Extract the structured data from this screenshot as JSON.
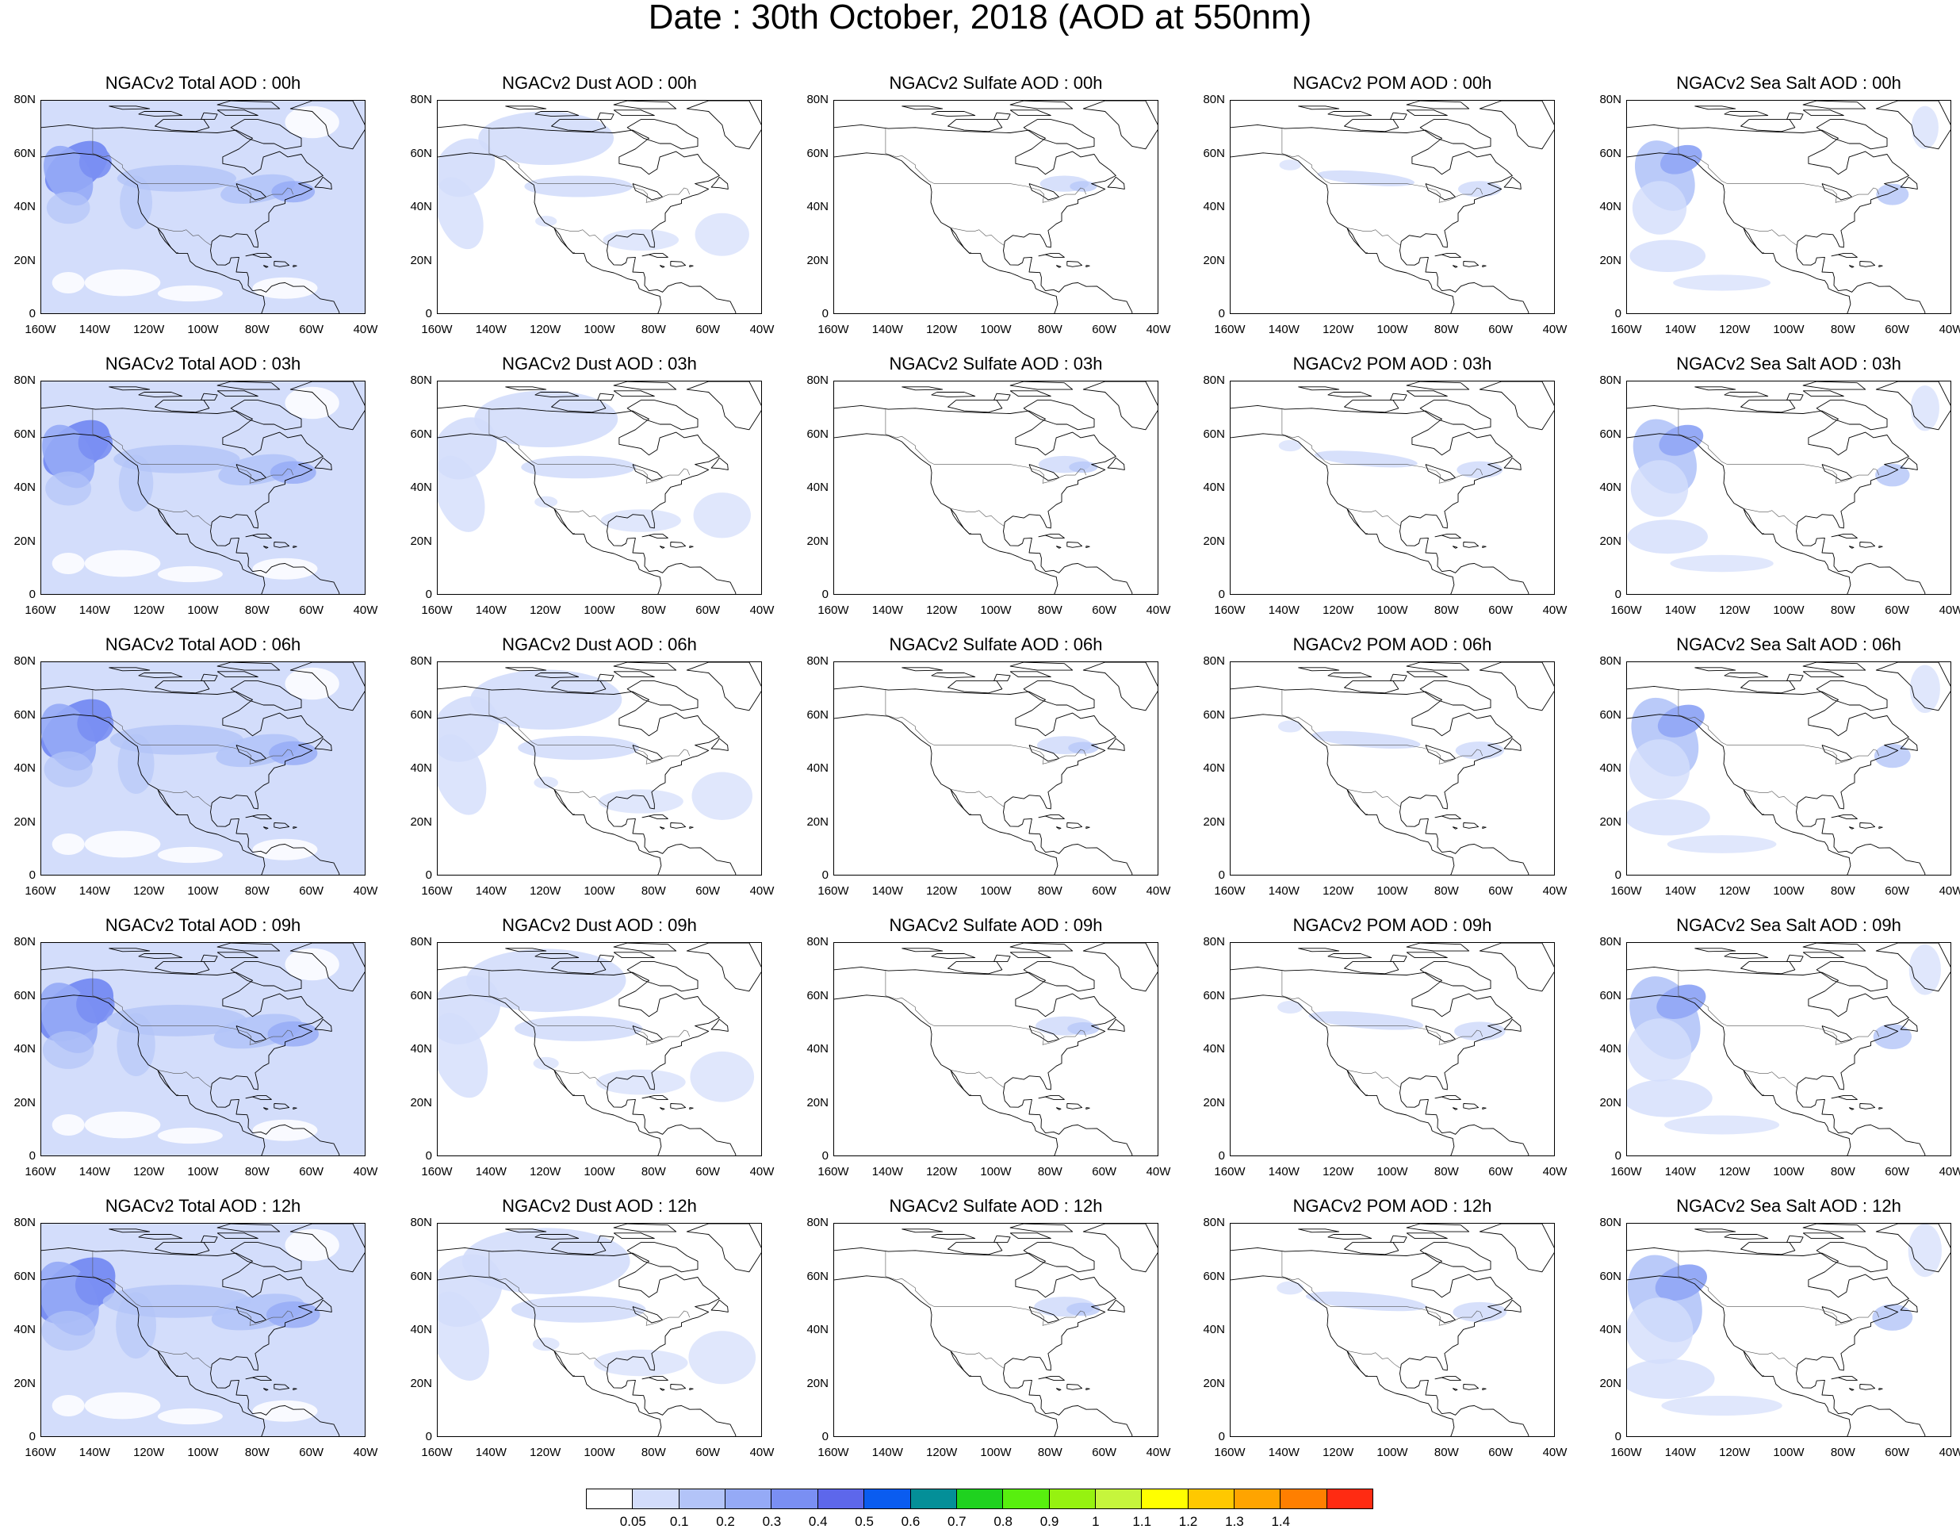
{
  "title": "Date : 30th October, 2018 (AOD at 550nm)",
  "lat_labels": [
    "80N",
    "60N",
    "40N",
    "20N",
    "0"
  ],
  "lon_labels": [
    "160W",
    "140W",
    "120W",
    "100W",
    "80W",
    "60W",
    "40W"
  ],
  "species": [
    "total",
    "dust",
    "sulfate",
    "pom",
    "seasalt"
  ],
  "panel_titles": [
    [
      "NGACv2 Total AOD : 00h",
      "NGACv2 Dust AOD : 00h",
      "NGACv2 Sulfate AOD : 00h",
      "NGACv2 POM AOD : 00h",
      "NGACv2 Sea Salt AOD : 00h"
    ],
    [
      "NGACv2 Total AOD : 03h",
      "NGACv2 Dust AOD : 03h",
      "NGACv2 Sulfate AOD : 03h",
      "NGACv2 POM AOD : 03h",
      "NGACv2 Sea Salt AOD : 03h"
    ],
    [
      "NGACv2 Total AOD : 06h",
      "NGACv2 Dust AOD : 06h",
      "NGACv2 Sulfate AOD : 06h",
      "NGACv2 POM AOD : 06h",
      "NGACv2 Sea Salt AOD : 06h"
    ],
    [
      "NGACv2 Total AOD : 09h",
      "NGACv2 Dust AOD : 09h",
      "NGACv2 Sulfate AOD : 09h",
      "NGACv2 POM AOD : 09h",
      "NGACv2 Sea Salt  AOD : 09h"
    ],
    [
      "NGACv2 Total AOD  : 12h",
      "NGACv2 Dust AOD : 12h",
      "NGACv2 Sulfate AOD : 12h",
      "NGACv2 POM  AOD : 12h",
      "NGACv2 Sea Salt  AOD : 12h"
    ]
  ],
  "colorbar": {
    "colors": [
      "#ffffff",
      "#d3ddfb",
      "#b3c4f8",
      "#95aaf6",
      "#7a8ff3",
      "#5d67eb",
      "#0a5cf0",
      "#048f98",
      "#1fd21f",
      "#58ef0f",
      "#96f210",
      "#c6f53c",
      "#ffff00",
      "#ffc800",
      "#ffa400",
      "#ff7f00",
      "#ff2b12"
    ],
    "labels": [
      "0.05",
      "0.1",
      "0.2",
      "0.3",
      "0.4",
      "0.5",
      "0.6",
      "0.7",
      "0.8",
      "0.9",
      "1",
      "1.1",
      "1.2",
      "1.3",
      "1.4"
    ]
  }
}
